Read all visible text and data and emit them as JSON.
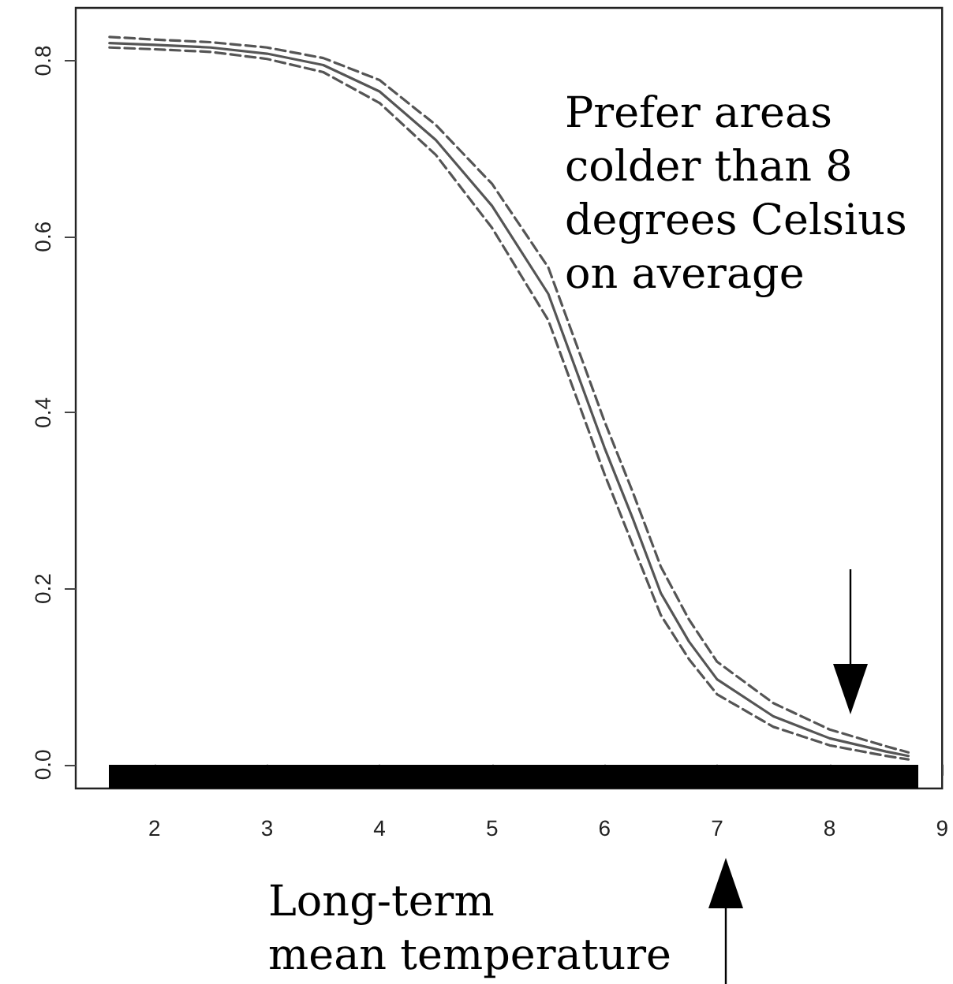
{
  "chart_data": {
    "type": "line",
    "x": [
      1.6,
      2,
      2.5,
      3,
      3.5,
      4,
      4.5,
      5,
      5.5,
      6,
      6.25,
      6.5,
      6.75,
      7,
      7.5,
      8,
      8.5,
      8.7
    ],
    "series": [
      {
        "color": "#555555",
        "line_style": "solid",
        "values": [
          0.82,
          0.818,
          0.815,
          0.808,
          0.795,
          0.765,
          0.71,
          0.635,
          0.535,
          0.36,
          0.28,
          0.195,
          0.14,
          0.097,
          0.055,
          0.03,
          0.015,
          0.01
        ]
      },
      {
        "color": "#555555",
        "line_style": "dashed",
        "values": [
          0.815,
          0.813,
          0.81,
          0.802,
          0.787,
          0.752,
          0.693,
          0.61,
          0.505,
          0.33,
          0.25,
          0.17,
          0.12,
          0.08,
          0.043,
          0.022,
          0.01,
          0.006
        ]
      },
      {
        "color": "#555555",
        "line_style": "dashed",
        "values": [
          0.827,
          0.824,
          0.821,
          0.815,
          0.803,
          0.778,
          0.727,
          0.66,
          0.565,
          0.39,
          0.31,
          0.225,
          0.165,
          0.117,
          0.07,
          0.04,
          0.021,
          0.014
        ]
      }
    ],
    "xlim": [
      1.3,
      9
    ],
    "ylim": [
      -0.027,
      0.86
    ],
    "xticks": [
      2,
      3,
      4,
      5,
      6,
      7,
      8,
      9
    ],
    "yticks": [
      {
        "value": 0,
        "label": "0.0"
      },
      {
        "value": 0.2,
        "label": "0.2"
      },
      {
        "value": 0.4,
        "label": "0.4"
      },
      {
        "value": 0.6,
        "label": "0.6"
      },
      {
        "value": 0.8,
        "label": "0.8"
      }
    ],
    "annotations": [
      "Prefer areas\ncolder than 8\ndegrees Celsius\non average",
      "Long-term\nmean temperature"
    ],
    "marker": "none",
    "grid": false
  }
}
